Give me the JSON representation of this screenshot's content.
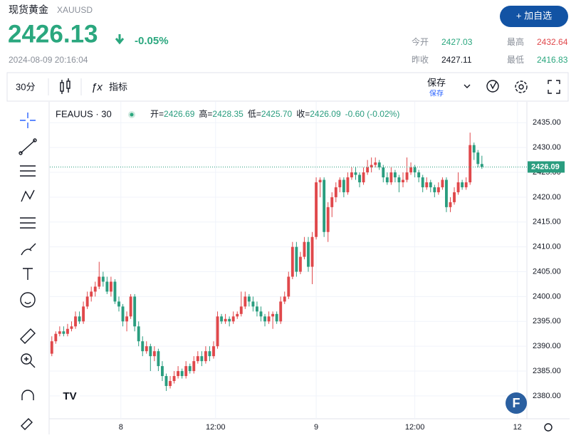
{
  "header": {
    "name": "现货黄金",
    "code": "XAUUSD",
    "price": "2426.13",
    "change": "-0.05%",
    "time": "2024-08-09 20:16:04",
    "button": "+ 加自选",
    "stats": [
      {
        "label": "今开",
        "value": "2427.03"
      },
      {
        "label": "最高",
        "value": "2432.64"
      },
      {
        "label": "昨收",
        "value": "2427.11"
      },
      {
        "label": "最低",
        "value": "2416.83"
      }
    ]
  },
  "toolbar": {
    "interval": "30分",
    "indicators": "指标",
    "save": "保存",
    "save_sub": "保存"
  },
  "chart_data": {
    "type": "candlestick",
    "symbol": "FEAUUS · 30",
    "legend": [
      {
        "label": "开=",
        "value": "2426.69"
      },
      {
        "label": "高=",
        "value": "2428.35"
      },
      {
        "label": "低=",
        "value": "2425.70"
      },
      {
        "label": "收=",
        "value": "2426.09"
      },
      {
        "label": "",
        "value": "-0.60 (-0.02%)"
      }
    ],
    "up_color": "#e0484b",
    "down_color": "#2a9d7f",
    "last_price": {
      "value": 2426.09,
      "label": "2426.09"
    },
    "ylim": [
      2375.4,
      2439.2
    ],
    "yticks": [
      {
        "value": 2380,
        "label": "2380.00"
      },
      {
        "value": 2385,
        "label": "2385.00"
      },
      {
        "value": 2390,
        "label": "2390.00"
      },
      {
        "value": 2395,
        "label": "2395.00"
      },
      {
        "value": 2400,
        "label": "2400.00"
      },
      {
        "value": 2405,
        "label": "2405.00"
      },
      {
        "value": 2410,
        "label": "2410.00"
      },
      {
        "value": 2415,
        "label": "2415.00"
      },
      {
        "value": 2420,
        "label": "2420.00"
      },
      {
        "value": 2425,
        "label": "2425.00"
      },
      {
        "value": 2430,
        "label": "2430.00"
      },
      {
        "value": 2435,
        "label": "2435.00"
      }
    ],
    "xlim": [
      -0.5,
      120.4
    ],
    "xticks": [
      {
        "value": 17.5,
        "label": "8"
      },
      {
        "value": 41.5,
        "label": "12:00"
      },
      {
        "value": 67,
        "label": "9"
      },
      {
        "value": 92,
        "label": "12:00"
      },
      {
        "value": 118,
        "label": "12"
      }
    ],
    "ohlc": [
      [
        2388.5,
        2392,
        2388,
        2391
      ],
      [
        2391,
        2393,
        2390.5,
        2392.5
      ],
      [
        2392.5,
        2394,
        2392,
        2393
      ],
      [
        2393,
        2394,
        2392,
        2392.5
      ],
      [
        2392.5,
        2394.5,
        2392,
        2393.5
      ],
      [
        2393.5,
        2395,
        2393,
        2394
      ],
      [
        2394,
        2397,
        2393.5,
        2396
      ],
      [
        2396,
        2397,
        2394.5,
        2395
      ],
      [
        2395,
        2399,
        2394.5,
        2398
      ],
      [
        2398,
        2401,
        2397.5,
        2400
      ],
      [
        2400,
        2402,
        2399,
        2401
      ],
      [
        2401,
        2403,
        2400,
        2402
      ],
      [
        2402,
        2407,
        2401.5,
        2404
      ],
      [
        2404,
        2405,
        2402,
        2403
      ],
      [
        2403,
        2404,
        2400.5,
        2401
      ],
      [
        2401,
        2404,
        2400,
        2403
      ],
      [
        2403,
        2403.5,
        2398.5,
        2399
      ],
      [
        2399,
        2400,
        2397,
        2398
      ],
      [
        2398,
        2398.5,
        2394,
        2395
      ],
      [
        2395,
        2397,
        2393,
        2396
      ],
      [
        2396,
        2400.5,
        2395.5,
        2400
      ],
      [
        2400,
        2400.5,
        2393,
        2394
      ],
      [
        2394,
        2395,
        2390,
        2391
      ],
      [
        2391,
        2392,
        2388,
        2389
      ],
      [
        2389,
        2391,
        2388.5,
        2390
      ],
      [
        2390,
        2390.5,
        2385,
        2388
      ],
      [
        2388,
        2390,
        2387,
        2389
      ],
      [
        2389,
        2389.5,
        2385,
        2386
      ],
      [
        2386,
        2387,
        2383,
        2384
      ],
      [
        2384,
        2384.5,
        2381,
        2382
      ],
      [
        2382,
        2384,
        2381.5,
        2383
      ],
      [
        2383,
        2385,
        2382.5,
        2384
      ],
      [
        2384,
        2386,
        2383.5,
        2385
      ],
      [
        2385,
        2385.5,
        2383.5,
        2384
      ],
      [
        2384,
        2387,
        2383.5,
        2386
      ],
      [
        2386,
        2386.5,
        2384.5,
        2385
      ],
      [
        2385,
        2388,
        2384.5,
        2387
      ],
      [
        2387,
        2389,
        2386.5,
        2388
      ],
      [
        2388,
        2389,
        2386,
        2387
      ],
      [
        2387,
        2390,
        2386.5,
        2389
      ],
      [
        2389,
        2390,
        2387,
        2388
      ],
      [
        2388,
        2391,
        2387.5,
        2390
      ],
      [
        2390,
        2397,
        2389.5,
        2396
      ],
      [
        2396,
        2396.5,
        2394.5,
        2395
      ],
      [
        2395,
        2396.5,
        2394.5,
        2395.5
      ],
      [
        2395.5,
        2396,
        2394,
        2395
      ],
      [
        2395,
        2397,
        2394.5,
        2396
      ],
      [
        2396,
        2397,
        2395.5,
        2396.5
      ],
      [
        2396.5,
        2401,
        2396,
        2398
      ],
      [
        2398,
        2401,
        2397.5,
        2400
      ],
      [
        2400,
        2400.5,
        2398,
        2399
      ],
      [
        2399,
        2400,
        2397,
        2398
      ],
      [
        2398,
        2399,
        2396,
        2397
      ],
      [
        2397,
        2398,
        2395,
        2396
      ],
      [
        2396,
        2396.5,
        2394,
        2395
      ],
      [
        2395,
        2397,
        2394.5,
        2396
      ],
      [
        2396,
        2397,
        2393.5,
        2396.5
      ],
      [
        2396.5,
        2397,
        2394.5,
        2395
      ],
      [
        2395,
        2400,
        2394.5,
        2399
      ],
      [
        2399,
        2401,
        2398.5,
        2400
      ],
      [
        2400,
        2405,
        2399.5,
        2404
      ],
      [
        2404,
        2411,
        2403.5,
        2410
      ],
      [
        2410,
        2411,
        2404,
        2405
      ],
      [
        2405,
        2409,
        2404.5,
        2408
      ],
      [
        2408,
        2412,
        2407.5,
        2411
      ],
      [
        2411,
        2412,
        2405,
        2406
      ],
      [
        2406,
        2413,
        2402.5,
        2412
      ],
      [
        2412,
        2424,
        2411.5,
        2423
      ],
      [
        2423,
        2424,
        2420,
        2423.5
      ],
      [
        2423.5,
        2424,
        2412,
        2413
      ],
      [
        2413,
        2419,
        2411,
        2418
      ],
      [
        2418,
        2421,
        2416,
        2420
      ],
      [
        2420,
        2423,
        2419,
        2422
      ],
      [
        2422,
        2424,
        2421,
        2423.5
      ],
      [
        2423.5,
        2424,
        2420,
        2421
      ],
      [
        2421,
        2425,
        2420.5,
        2424
      ],
      [
        2424,
        2426,
        2423.5,
        2425
      ],
      [
        2425,
        2426,
        2423.5,
        2424.5
      ],
      [
        2424.5,
        2425,
        2422,
        2423
      ],
      [
        2423,
        2426,
        2422.5,
        2425
      ],
      [
        2425,
        2427.5,
        2424.5,
        2426
      ],
      [
        2426,
        2428,
        2425,
        2426.5
      ],
      [
        2426.5,
        2428,
        2426,
        2427
      ],
      [
        2427,
        2427.5,
        2425.5,
        2426
      ],
      [
        2426,
        2426.5,
        2423,
        2424
      ],
      [
        2424,
        2425,
        2422.5,
        2423
      ],
      [
        2423,
        2426,
        2422.5,
        2425
      ],
      [
        2425,
        2425.5,
        2423,
        2424
      ],
      [
        2424,
        2424.5,
        2421,
        2423
      ],
      [
        2423,
        2425,
        2422,
        2423.5
      ],
      [
        2423.5,
        2428,
        2423,
        2425
      ],
      [
        2425,
        2427,
        2424.5,
        2426
      ],
      [
        2426,
        2426.5,
        2424,
        2425
      ],
      [
        2425,
        2425.5,
        2423,
        2424
      ],
      [
        2424,
        2424.5,
        2421,
        2422
      ],
      [
        2422,
        2424,
        2421.5,
        2423
      ],
      [
        2423,
        2423.5,
        2421,
        2422
      ],
      [
        2422,
        2422.5,
        2420,
        2421
      ],
      [
        2421,
        2423,
        2420.5,
        2422
      ],
      [
        2422,
        2424,
        2421.5,
        2423.5
      ],
      [
        2423.5,
        2424,
        2417,
        2418
      ],
      [
        2418,
        2420,
        2417,
        2419
      ],
      [
        2419,
        2422,
        2418.5,
        2421
      ],
      [
        2421,
        2425,
        2420.5,
        2423
      ],
      [
        2423,
        2423.5,
        2421.5,
        2422
      ],
      [
        2422,
        2424,
        2421.5,
        2423
      ],
      [
        2423,
        2433,
        2422.5,
        2430.5
      ],
      [
        2430.5,
        2431,
        2427.5,
        2429
      ],
      [
        2429,
        2429.5,
        2426,
        2426.69
      ],
      [
        2426.69,
        2428.35,
        2425.7,
        2426.09
      ]
    ]
  }
}
